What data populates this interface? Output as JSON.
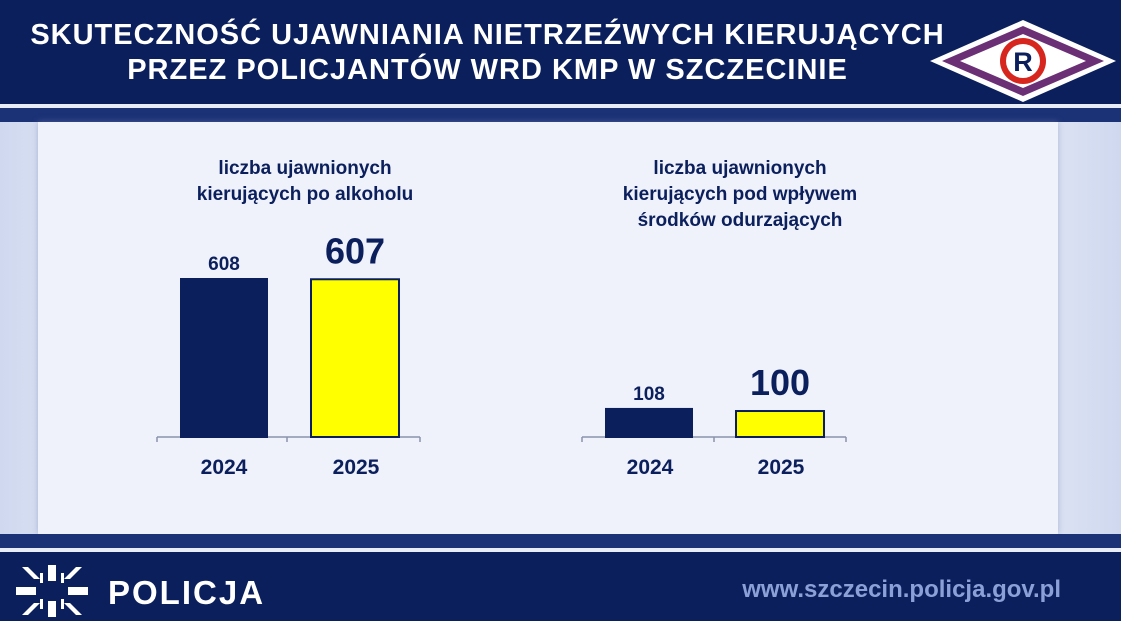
{
  "header": {
    "title_line1": "SKUTECZNOŚĆ UJAWNIANIA NIETRZEŹWYCH KIERUJĄCYCH",
    "title_line2": "PRZEZ POLICJANTÓW WRD KMP W SZCZECINIE",
    "badge_letter": "R"
  },
  "footer": {
    "brand": "POLICJA",
    "url": "www.szczecin.policja.gov.pl"
  },
  "colors": {
    "navy": "#0b1f5c",
    "bar_2024": "#0b1f5c",
    "bar_2025": "#ffff00",
    "badge_red": "#d7261e"
  },
  "chart_data": [
    {
      "type": "bar",
      "title_lines": [
        "liczba ujawnionych",
        "kierujących po alkoholu"
      ],
      "categories": [
        "2024",
        "2025"
      ],
      "values": [
        608,
        607
      ],
      "value_labels": [
        "608",
        "607"
      ],
      "ylim": [
        0,
        608
      ],
      "grid": false
    },
    {
      "type": "bar",
      "title_lines": [
        "liczba ujawnionych",
        "kierujących pod wpływem",
        "środków odurzających"
      ],
      "categories": [
        "2024",
        "2025"
      ],
      "values": [
        108,
        100
      ],
      "value_labels": [
        "108",
        "100"
      ],
      "ylim": [
        0,
        608
      ],
      "grid": false
    }
  ]
}
